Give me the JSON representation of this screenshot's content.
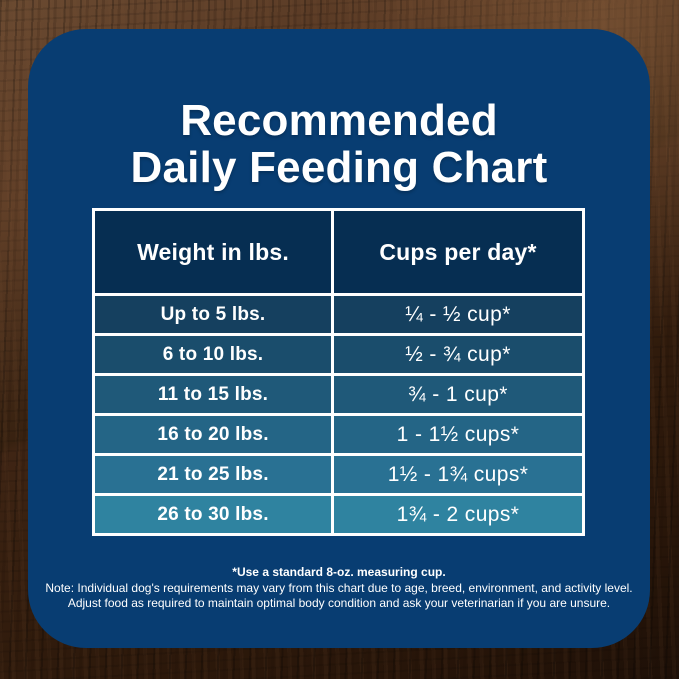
{
  "card": {
    "title_line1": "Recommended",
    "title_line2": "Daily Feeding Chart",
    "bg_color": "#083d72",
    "text_color": "#ffffff"
  },
  "table": {
    "header_bg": "#062e52",
    "border_color": "#ffffff",
    "headers": [
      "Weight in lbs.",
      "Cups per day*"
    ],
    "rows": [
      {
        "weight": "Up to 5 lbs.",
        "cups": "¼ - ½ cup*",
        "bg": "#15405f"
      },
      {
        "weight": "6 to 10 lbs.",
        "cups": "½ - ¾ cup*",
        "bg": "#1a4d6c"
      },
      {
        "weight": "11 to 15 lbs.",
        "cups": "¾ - 1 cup*",
        "bg": "#1f5979"
      },
      {
        "weight": "16 to 20 lbs.",
        "cups": "1 - 1½ cups*",
        "bg": "#246586"
      },
      {
        "weight": "21 to 25 lbs.",
        "cups": "1½ - 1¾ cups*",
        "bg": "#297193"
      },
      {
        "weight": "26 to 30 lbs.",
        "cups": "1¾ - 2 cups*",
        "bg": "#2f83a0"
      }
    ]
  },
  "footnotes": {
    "line1": "*Use a standard 8-oz. measuring cup.",
    "line2": "Note: Individual dog's requirements may vary from this chart due to age, breed, environment, and activity level.",
    "line3": "Adjust food as required to maintain optimal body condition and ask your veterinarian if you are unsure."
  },
  "chart_data": {
    "type": "table",
    "title": "Recommended Daily Feeding Chart",
    "columns": [
      "Weight in lbs.",
      "Cups per day*"
    ],
    "rows": [
      [
        "Up to 5 lbs.",
        "¼ - ½ cup*"
      ],
      [
        "6 to 10 lbs.",
        "½ - ¾ cup*"
      ],
      [
        "11 to 15 lbs.",
        "¾ - 1 cup*"
      ],
      [
        "16 to 20 lbs.",
        "1 - 1½ cups*"
      ],
      [
        "21 to 25 lbs.",
        "1½ - 1¾ cups*"
      ],
      [
        "26 to 30 lbs.",
        "1¾ - 2 cups*"
      ]
    ],
    "footnotes": [
      "*Use a standard 8-oz. measuring cup.",
      "Note: Individual dog's requirements may vary from this chart due to age, breed, environment, and activity level.",
      "Adjust food as required to maintain optimal body condition and ask your veterinarian if you are unsure."
    ]
  }
}
